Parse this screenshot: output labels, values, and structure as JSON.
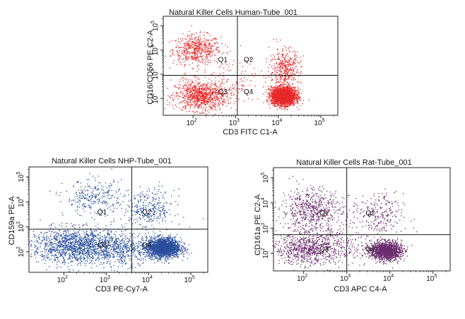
{
  "chart_data": [
    {
      "type": "scatter",
      "title": "Natural Killer Cells Human-Tube_001",
      "xlabel": "CD3 FITC C1-A",
      "ylabel": "CD16/CD56 PE C2-A",
      "xscale": "log",
      "yscale": "log",
      "xlim": [
        20,
        250000
      ],
      "ylim": [
        20,
        250000
      ],
      "xticks": [
        {
          "v": 100,
          "e": "2"
        },
        {
          "v": 1000,
          "e": "3"
        },
        {
          "v": 10000,
          "e": "4"
        },
        {
          "v": 100000,
          "e": "5"
        }
      ],
      "yticks": [
        {
          "v": 100,
          "e": "2"
        },
        {
          "v": 1000,
          "e": "3"
        },
        {
          "v": 10000,
          "e": "4"
        },
        {
          "v": 100000,
          "e": "5"
        }
      ],
      "gate": {
        "x": 1100,
        "y": 900
      },
      "quadrants": [
        {
          "label": "Q1",
          "x": 500,
          "y": 3200
        },
        {
          "label": "Q2",
          "x": 2000,
          "y": 3200
        },
        {
          "label": "Q3",
          "x": 500,
          "y": 150
        },
        {
          "label": "Q4",
          "x": 2000,
          "y": 150
        }
      ],
      "color": "#e8292a",
      "populations": [
        {
          "cx": 120,
          "cy": 11000,
          "sx": 0.28,
          "sy": 0.3,
          "n": 520
        },
        {
          "cx": 150,
          "cy": 130,
          "sx": 0.3,
          "sy": 0.3,
          "n": 900
        },
        {
          "cx": 13000,
          "cy": 130,
          "sx": 0.14,
          "sy": 0.18,
          "n": 2600
        },
        {
          "cx": 14000,
          "cy": 1500,
          "sx": 0.18,
          "sy": 0.45,
          "n": 420
        },
        {
          "cx": 800,
          "cy": 500,
          "sx": 0.6,
          "sy": 0.55,
          "n": 160
        }
      ]
    },
    {
      "type": "scatter",
      "title": "Natural Killer Cells NHP-Tube_001",
      "xlabel": "CD3 PE-Cy7-A",
      "ylabel": "CD159a PE-A",
      "xscale": "log",
      "yscale": "log",
      "xlim": [
        15,
        250000
      ],
      "ylim": [
        15,
        250000
      ],
      "xticks": [
        {
          "v": 100,
          "e": "2"
        },
        {
          "v": 1000,
          "e": "3"
        },
        {
          "v": 10000,
          "e": "4"
        },
        {
          "v": 100000,
          "e": "5"
        }
      ],
      "yticks": [
        {
          "v": 100,
          "e": "2"
        },
        {
          "v": 1000,
          "e": "3"
        },
        {
          "v": 10000,
          "e": "4"
        },
        {
          "v": 100000,
          "e": "5"
        }
      ],
      "gate": {
        "x": 4000,
        "y": 800
      },
      "quadrants": [
        {
          "label": "Q1",
          "x": 800,
          "y": 3200
        },
        {
          "label": "Q2",
          "x": 9000,
          "y": 3200
        },
        {
          "label": "Q3",
          "x": 800,
          "y": 150
        },
        {
          "label": "Q4",
          "x": 9000,
          "y": 150
        }
      ],
      "color": "#2a4f9e",
      "populations": [
        {
          "cx": 500,
          "cy": 15000,
          "sx": 0.35,
          "sy": 0.35,
          "n": 280
        },
        {
          "cx": 200,
          "cy": 180,
          "sx": 0.55,
          "sy": 0.35,
          "n": 1500
        },
        {
          "cx": 22000,
          "cy": 150,
          "sx": 0.2,
          "sy": 0.2,
          "n": 1900
        },
        {
          "cx": 10000,
          "cy": 5000,
          "sx": 0.3,
          "sy": 0.4,
          "n": 320
        },
        {
          "cx": 2500,
          "cy": 120,
          "sx": 0.35,
          "sy": 0.3,
          "n": 400
        }
      ]
    },
    {
      "type": "scatter",
      "title": "Natural Killer Cells Rat-Tube_001",
      "xlabel": "CD3 APC C4-A",
      "ylabel": "CD161a PE C2-A",
      "xscale": "log",
      "yscale": "log",
      "xlim": [
        20,
        250000
      ],
      "ylim": [
        20,
        250000
      ],
      "xticks": [
        {
          "v": 100,
          "e": "2"
        },
        {
          "v": 1000,
          "e": "3"
        },
        {
          "v": 10000,
          "e": "4"
        },
        {
          "v": 100000,
          "e": "5"
        }
      ],
      "yticks": [
        {
          "v": 100,
          "e": "2"
        },
        {
          "v": 1000,
          "e": "3"
        },
        {
          "v": 10000,
          "e": "4"
        },
        {
          "v": 100000,
          "e": "5"
        }
      ],
      "gate": {
        "x": 1000,
        "y": 550
      },
      "quadrants": [
        {
          "label": "Q1",
          "x": 300,
          "y": 3200
        },
        {
          "label": "Q2",
          "x": 3500,
          "y": 3200
        },
        {
          "label": "Q3",
          "x": 300,
          "y": 120
        },
        {
          "label": "Q4",
          "x": 3500,
          "y": 120
        }
      ],
      "color": "#6b2d6e",
      "populations": [
        {
          "cx": 150,
          "cy": 5000,
          "sx": 0.35,
          "sy": 0.45,
          "n": 620
        },
        {
          "cx": 120,
          "cy": 150,
          "sx": 0.4,
          "sy": 0.3,
          "n": 700
        },
        {
          "cx": 8000,
          "cy": 130,
          "sx": 0.18,
          "sy": 0.18,
          "n": 1500
        },
        {
          "cx": 5000,
          "cy": 3000,
          "sx": 0.3,
          "sy": 0.45,
          "n": 260
        },
        {
          "cx": 600,
          "cy": 200,
          "sx": 0.45,
          "sy": 0.4,
          "n": 220
        }
      ]
    }
  ]
}
